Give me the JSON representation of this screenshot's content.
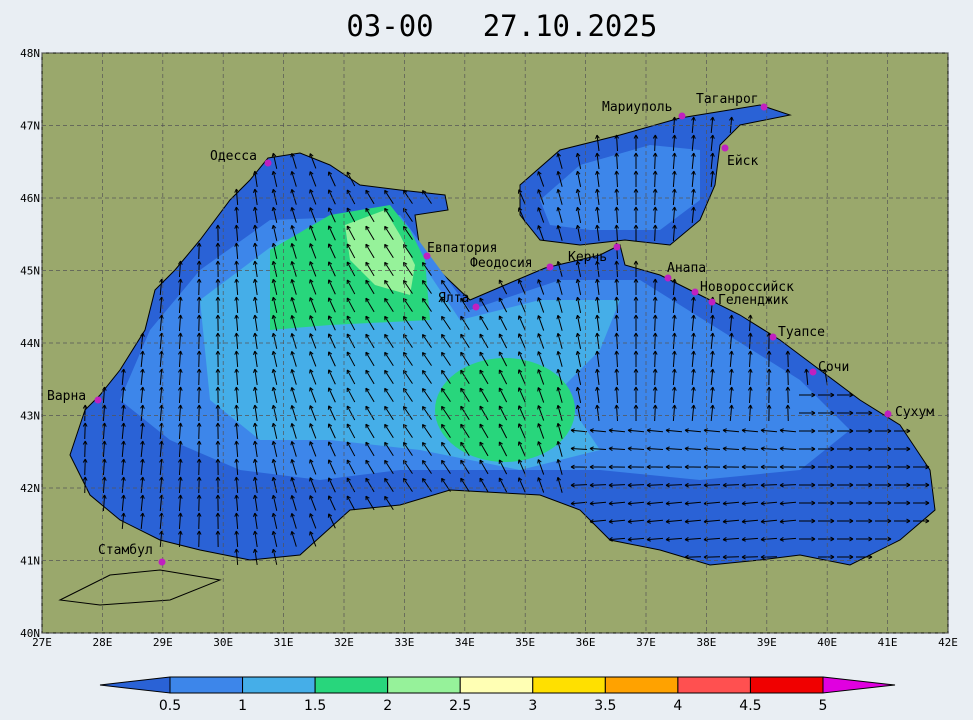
{
  "title": {
    "time": "03-00",
    "date": "27.10.2025"
  },
  "x_ticks": [
    "27E",
    "28E",
    "29E",
    "30E",
    "31E",
    "32E",
    "33E",
    "34E",
    "35E",
    "36E",
    "37E",
    "38E",
    "39E",
    "40E",
    "41E",
    "42E"
  ],
  "y_ticks": [
    "40N",
    "41N",
    "42N",
    "43N",
    "44N",
    "45N",
    "46N",
    "47N",
    "48N"
  ],
  "cities": [
    "Одесса",
    "Евпатория",
    "Феодосия",
    "Керчь",
    "Ялта",
    "Мариуполь",
    "Таганрог",
    "Ейск",
    "Анапа",
    "Новороссийск",
    "Геленджик",
    "Туапсе",
    "Сочи",
    "Сухум",
    "Варна",
    "Стамбул"
  ],
  "colorbar": {
    "ticks": [
      0.5,
      1,
      1.5,
      2,
      2.5,
      3,
      3.5,
      4,
      4.5,
      5
    ],
    "colors": [
      "#2a62d6",
      "#3d86ea",
      "#45aee8",
      "#28d67c",
      "#96f29a",
      "#ffffb4",
      "#ffe000",
      "#ffa200",
      "#ff5050",
      "#f00000",
      "#e000e0"
    ]
  }
}
